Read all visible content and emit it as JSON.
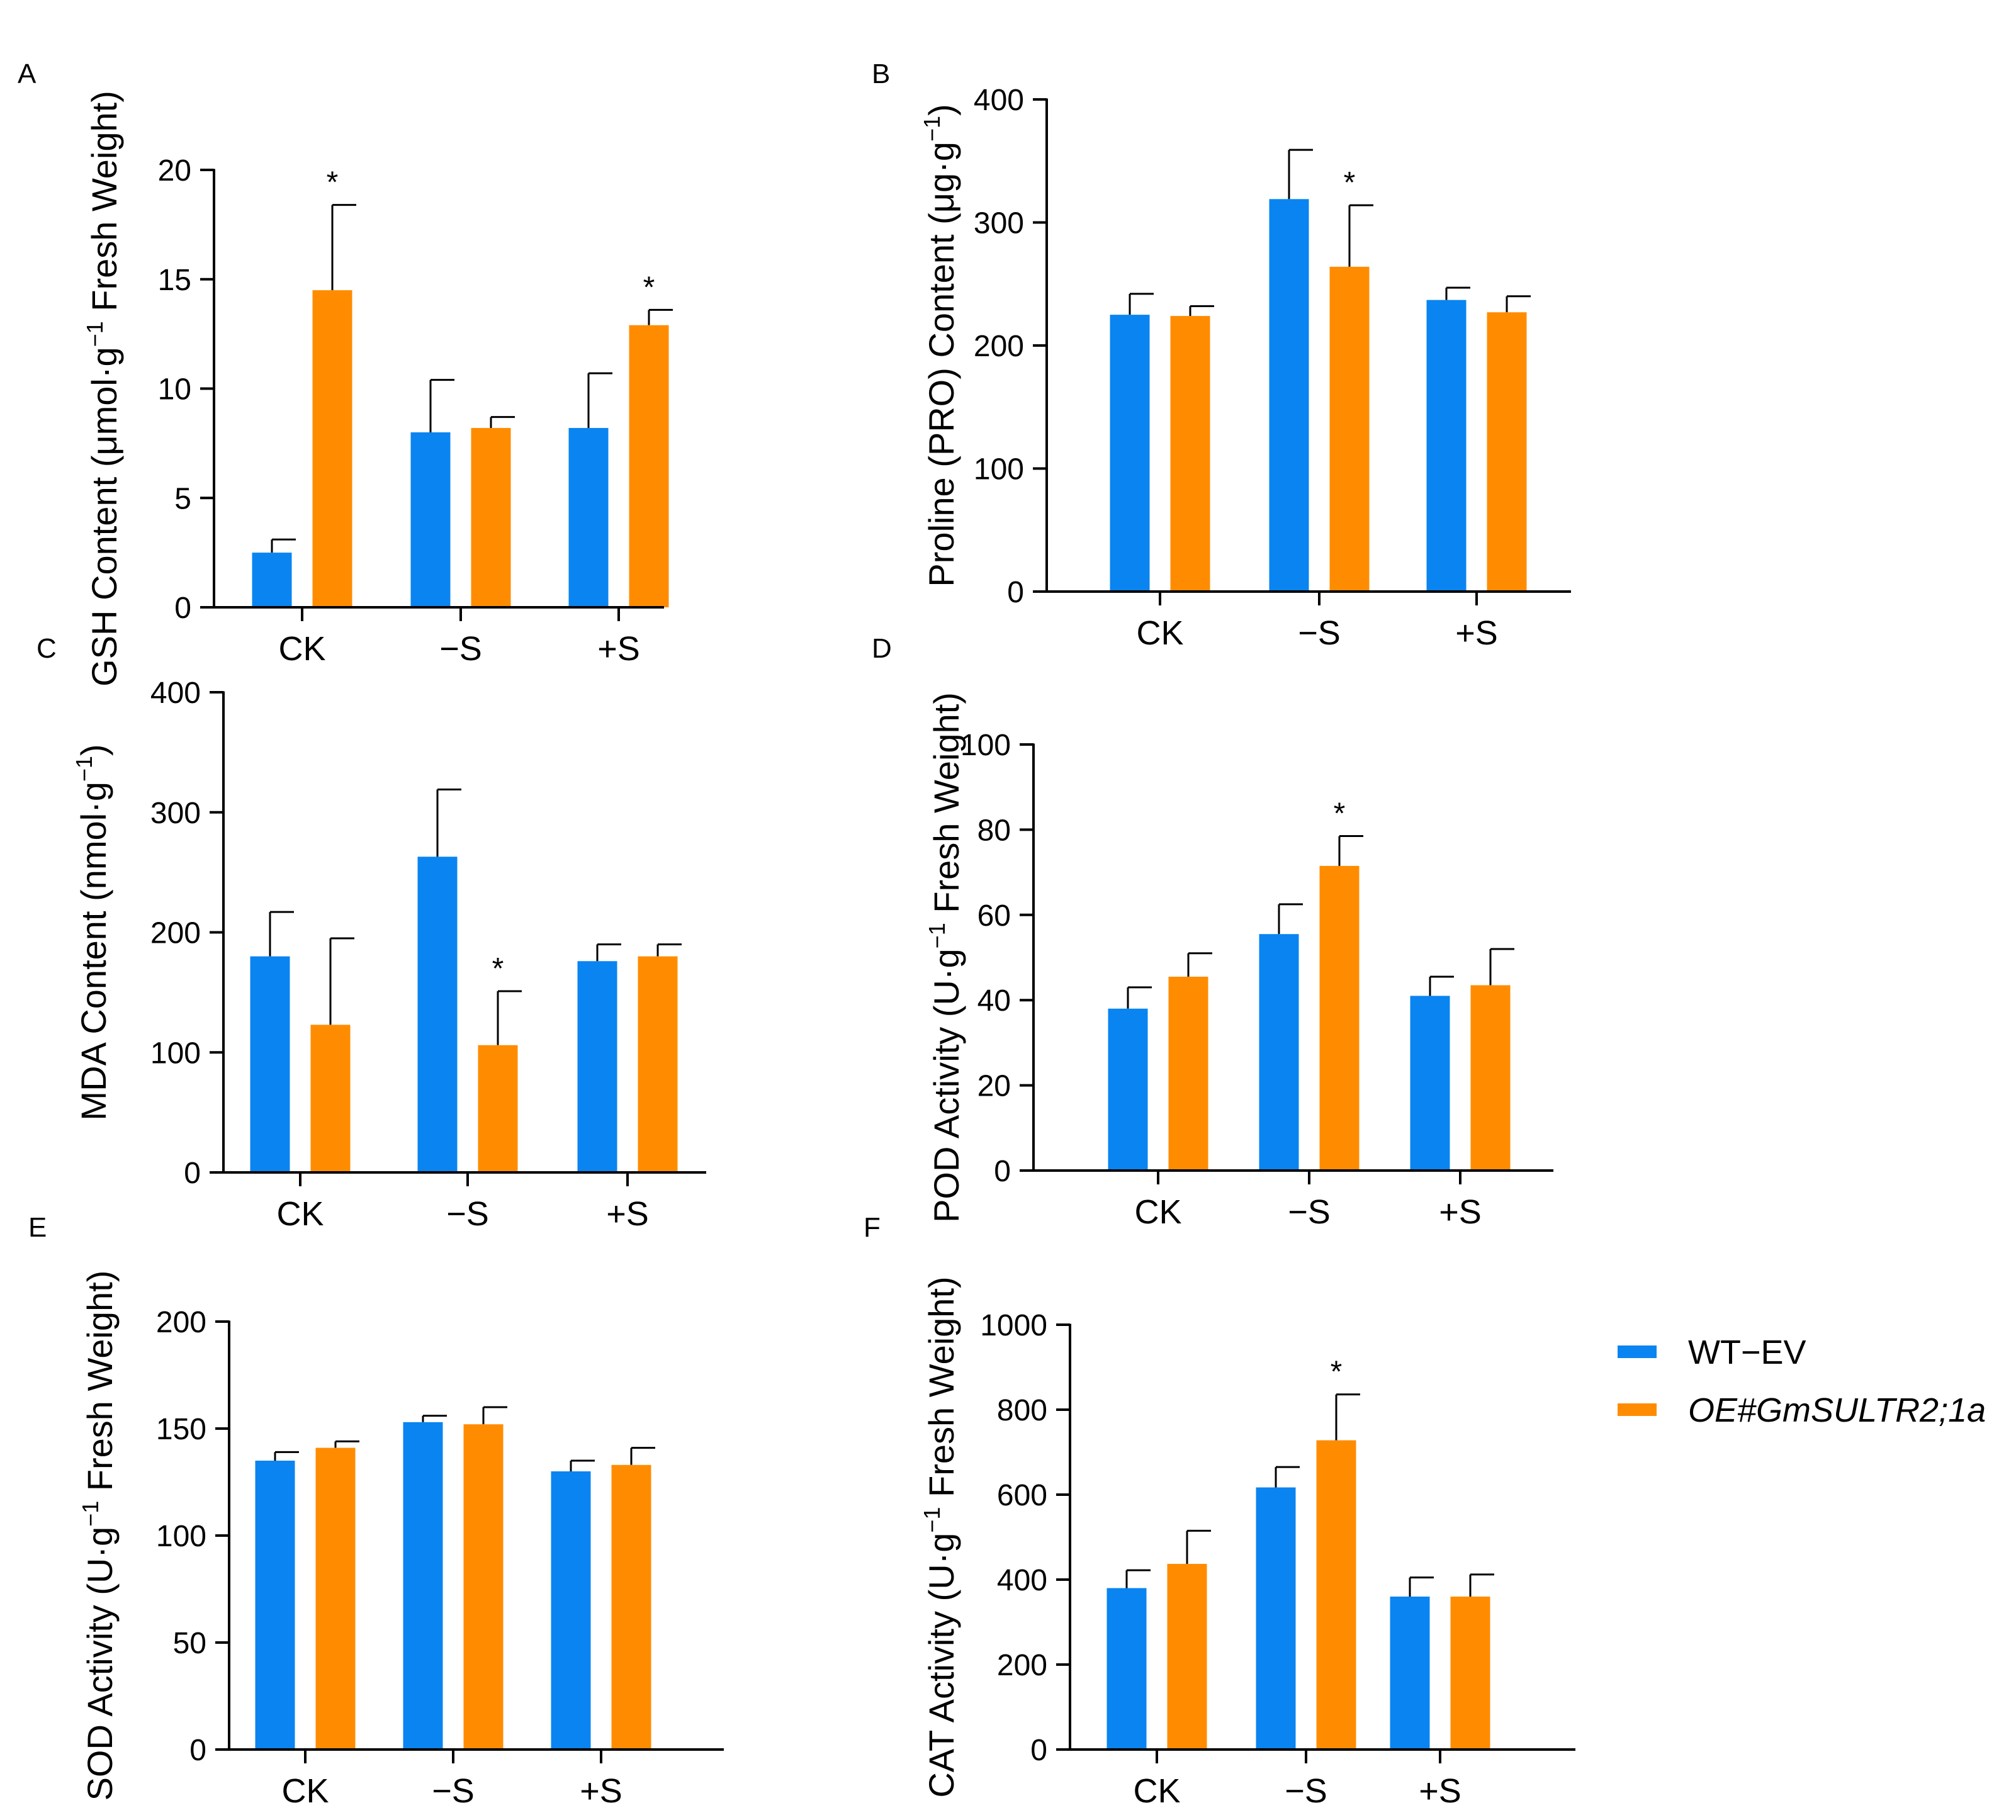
{
  "colors": {
    "wt": "#0a84f0",
    "oe": "#ff8c00",
    "axis": "#000000"
  },
  "legend": [
    {
      "label": "WT−EV",
      "series": "wt"
    },
    {
      "label": "OE#GmSULTR2;1a",
      "series": "oe"
    }
  ],
  "chart_data": [
    {
      "panel": "A",
      "type": "bar",
      "ylabel_main": "GSH Content (μmol·g",
      "ylabel_sup": "−1",
      "ylabel_tail": " Fresh Weight)",
      "categories": [
        "CK",
        "−S",
        "+S"
      ],
      "ylim": [
        0,
        20
      ],
      "yticks": [
        0,
        5,
        10,
        15,
        20
      ],
      "series": [
        {
          "key": "wt",
          "name": "WT−EV",
          "values": [
            2.5,
            8.0,
            8.2
          ],
          "errors": [
            0.6,
            2.4,
            2.5
          ]
        },
        {
          "key": "oe",
          "name": "OE#GmSULTR2;1a",
          "values": [
            14.5,
            8.2,
            12.9
          ],
          "errors": [
            3.9,
            0.5,
            0.7
          ]
        }
      ],
      "significance": [
        {
          "category": 0,
          "series": "oe",
          "mark": "*"
        },
        {
          "category": 2,
          "series": "oe",
          "mark": "*"
        }
      ]
    },
    {
      "panel": "B",
      "type": "bar",
      "ylabel_main": "Proline (PRO) Content (μg·g",
      "ylabel_sup": "−1",
      "ylabel_tail": ")",
      "categories": [
        "CK",
        "−S",
        "+S"
      ],
      "ylim": [
        0,
        400
      ],
      "yticks": [
        0,
        100,
        200,
        300,
        400
      ],
      "series": [
        {
          "key": "wt",
          "name": "WT−EV",
          "values": [
            225,
            319,
            237
          ],
          "errors": [
            17,
            40,
            10
          ]
        },
        {
          "key": "oe",
          "name": "OE#GmSULTR2;1a",
          "values": [
            224,
            264,
            227
          ],
          "errors": [
            8,
            50,
            13
          ]
        }
      ],
      "significance": [
        {
          "category": 1,
          "series": "oe",
          "mark": "*"
        }
      ]
    },
    {
      "panel": "C",
      "type": "bar",
      "ylabel_main": "MDA Content (nmol·g",
      "ylabel_sup": "−1",
      "ylabel_tail": ")",
      "categories": [
        "CK",
        "−S",
        "+S"
      ],
      "ylim": [
        0,
        400
      ],
      "yticks": [
        0,
        100,
        200,
        300,
        400
      ],
      "series": [
        {
          "key": "wt",
          "name": "WT−EV",
          "values": [
            180,
            263,
            176
          ],
          "errors": [
            37,
            56,
            14
          ]
        },
        {
          "key": "oe",
          "name": "OE#GmSULTR2;1a",
          "values": [
            123,
            106,
            180
          ],
          "errors": [
            72,
            45,
            10
          ]
        }
      ],
      "significance": [
        {
          "category": 1,
          "series": "oe",
          "mark": "*"
        }
      ]
    },
    {
      "panel": "D",
      "type": "bar",
      "ylabel_main": "POD Activity (U·g",
      "ylabel_sup": "−1",
      "ylabel_tail": " Fresh Weight)",
      "categories": [
        "CK",
        "−S",
        "+S"
      ],
      "ylim": [
        0,
        100
      ],
      "yticks": [
        0,
        20,
        40,
        60,
        80,
        100
      ],
      "series": [
        {
          "key": "wt",
          "name": "WT−EV",
          "values": [
            38,
            55.5,
            41
          ],
          "errors": [
            5,
            7,
            4.5
          ]
        },
        {
          "key": "oe",
          "name": "OE#GmSULTR2;1a",
          "values": [
            45.5,
            71.5,
            43.5
          ],
          "errors": [
            5.5,
            7,
            8.5
          ]
        }
      ],
      "significance": [
        {
          "category": 1,
          "series": "oe",
          "mark": "*"
        }
      ]
    },
    {
      "panel": "E",
      "type": "bar",
      "ylabel_main": "SOD Activity (U·g",
      "ylabel_sup": "−1",
      "ylabel_tail": " Fresh Weight)",
      "categories": [
        "CK",
        "−S",
        "+S"
      ],
      "ylim": [
        0,
        200
      ],
      "yticks": [
        0,
        50,
        100,
        150,
        200
      ],
      "series": [
        {
          "key": "wt",
          "name": "WT−EV",
          "values": [
            135,
            153,
            130
          ],
          "errors": [
            4,
            3,
            5
          ]
        },
        {
          "key": "oe",
          "name": "OE#GmSULTR2;1a",
          "values": [
            141,
            152,
            133
          ],
          "errors": [
            3,
            8,
            8
          ]
        }
      ],
      "significance": []
    },
    {
      "panel": "F",
      "type": "bar",
      "ylabel_main": "CAT Activity (U·g",
      "ylabel_sup": "−1",
      "ylabel_tail": " Fresh Weight)",
      "categories": [
        "CK",
        "−S",
        "+S"
      ],
      "ylim": [
        0,
        1000
      ],
      "yticks": [
        0,
        200,
        400,
        600,
        800,
        1000
      ],
      "series": [
        {
          "key": "wt",
          "name": "WT−EV",
          "values": [
            380,
            617,
            360
          ],
          "errors": [
            42,
            48,
            45
          ]
        },
        {
          "key": "oe",
          "name": "OE#GmSULTR2;1a",
          "values": [
            437,
            728,
            360
          ],
          "errors": [
            78,
            108,
            52
          ]
        }
      ],
      "significance": [
        {
          "category": 1,
          "series": "oe",
          "mark": "*"
        }
      ]
    }
  ]
}
